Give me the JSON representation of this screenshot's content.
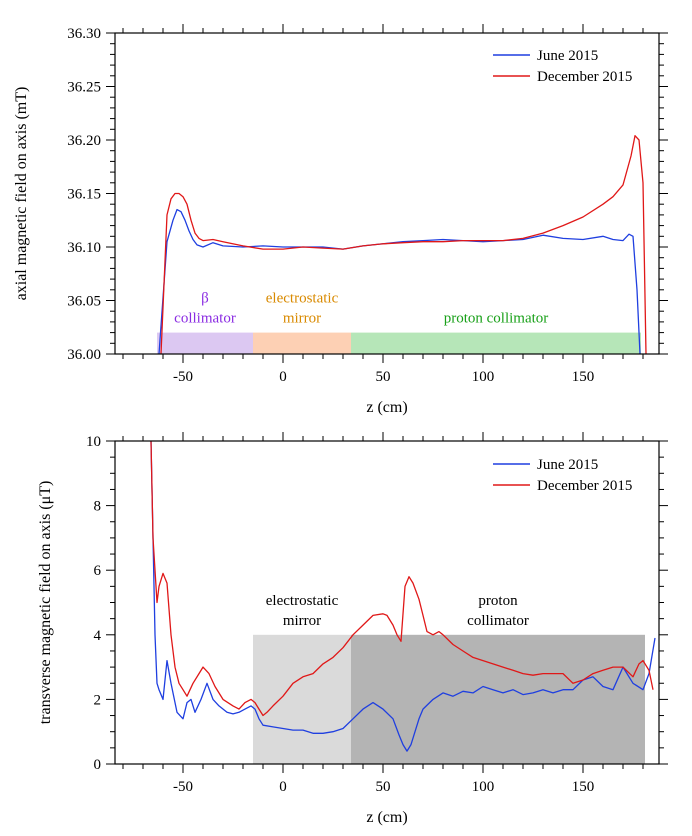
{
  "chart_data": [
    {
      "type": "line",
      "xlabel": "z (cm)",
      "ylabel": "axial magnetic field on axis (mT)",
      "xlim": [
        -84,
        188
      ],
      "ylim": [
        36.0,
        36.3
      ],
      "xticks": [
        -50,
        0,
        50,
        100,
        150
      ],
      "yticks": [
        "36.00",
        "36.05",
        "36.10",
        "36.15",
        "36.20",
        "36.25",
        "36.30"
      ],
      "grid": false,
      "legend_position": "top-right",
      "regions": [
        {
          "label_lines": [
            "β",
            "collimator"
          ],
          "x_start": -63,
          "x_end": -15,
          "y_top": 36.02,
          "fill": "#dcc8f2",
          "text_color": "#8a2be2"
        },
        {
          "label_lines": [
            "electrostatic",
            "mirror"
          ],
          "x_start": -15,
          "x_end": 34,
          "y_top": 36.02,
          "fill": "#fdd0b4",
          "text_color": "#d98a00"
        },
        {
          "label_lines": [
            "proton collimator"
          ],
          "x_start": 34,
          "x_end": 179,
          "y_top": 36.02,
          "fill": "#b6e6b8",
          "text_color": "#18a018"
        }
      ],
      "series": [
        {
          "name": "June 2015",
          "color": "#1f3fe0",
          "x": [
            -62,
            -58,
            -55,
            -53,
            -51,
            -49,
            -47,
            -45,
            -43,
            -40,
            -35,
            -30,
            -20,
            -10,
            0,
            10,
            20,
            30,
            40,
            50,
            60,
            70,
            80,
            90,
            100,
            110,
            120,
            130,
            140,
            150,
            160,
            165,
            170,
            173,
            175,
            177,
            178.5
          ],
          "y": [
            36.0,
            36.105,
            36.125,
            36.135,
            36.133,
            36.125,
            36.115,
            36.107,
            36.102,
            36.1,
            36.104,
            36.101,
            36.1,
            36.101,
            36.1,
            36.1,
            36.1,
            36.098,
            36.101,
            36.103,
            36.105,
            36.106,
            36.107,
            36.106,
            36.105,
            36.106,
            36.107,
            36.111,
            36.108,
            36.107,
            36.11,
            36.107,
            36.106,
            36.112,
            36.11,
            36.06,
            36.0
          ]
        },
        {
          "name": "December 2015",
          "color": "#e01818",
          "x": [
            -61,
            -58,
            -56,
            -54,
            -52,
            -50,
            -48,
            -46,
            -44,
            -42,
            -40,
            -35,
            -30,
            -20,
            -10,
            0,
            10,
            20,
            30,
            40,
            50,
            60,
            70,
            80,
            90,
            100,
            110,
            120,
            130,
            140,
            150,
            160,
            165,
            170,
            174,
            176,
            178,
            180,
            181.5
          ],
          "y": [
            36.0,
            36.13,
            36.145,
            36.15,
            36.15,
            36.147,
            36.14,
            36.125,
            36.113,
            36.108,
            36.106,
            36.107,
            36.105,
            36.101,
            36.098,
            36.098,
            36.1,
            36.099,
            36.098,
            36.101,
            36.103,
            36.104,
            36.105,
            36.105,
            36.106,
            36.106,
            36.106,
            36.108,
            36.113,
            36.12,
            36.128,
            36.14,
            36.147,
            36.158,
            36.185,
            36.204,
            36.2,
            36.16,
            36.0
          ]
        }
      ]
    },
    {
      "type": "line",
      "xlabel": "z (cm)",
      "ylabel": "transverse magnetic field on axis (μT)",
      "xlim": [
        -84,
        188
      ],
      "ylim": [
        0,
        10
      ],
      "xticks": [
        -50,
        0,
        50,
        100,
        150
      ],
      "yticks": [
        "0",
        "2",
        "4",
        "6",
        "8",
        "10"
      ],
      "grid": false,
      "legend_position": "top-right",
      "regions": [
        {
          "label_lines": [
            "electrostatic",
            "mirror"
          ],
          "x_start": -15,
          "x_end": 34,
          "y_top": 4,
          "fill": "#dadada",
          "text_color": "#000000"
        },
        {
          "label_lines": [
            "proton",
            "collimator"
          ],
          "x_start": 34,
          "x_end": 181,
          "y_top": 4,
          "fill": "#b4b4b4",
          "text_color": "#000000"
        }
      ],
      "series": [
        {
          "name": "June 2015",
          "color": "#1f3fe0",
          "x": [
            -66,
            -65,
            -64,
            -63,
            -62,
            -60,
            -58,
            -56,
            -53,
            -50,
            -48,
            -46,
            -44,
            -41,
            -38,
            -35,
            -32,
            -28,
            -25,
            -22,
            -19,
            -16,
            -14,
            -12,
            -10,
            -5,
            0,
            5,
            10,
            15,
            20,
            25,
            30,
            35,
            40,
            45,
            50,
            55,
            58,
            60,
            62,
            64,
            66,
            68,
            70,
            75,
            80,
            85,
            90,
            95,
            100,
            105,
            110,
            115,
            120,
            125,
            130,
            135,
            140,
            145,
            150,
            155,
            160,
            165,
            170,
            175,
            180,
            183,
            186
          ],
          "y": [
            10,
            7,
            4,
            2.5,
            2.3,
            2.0,
            3.2,
            2.5,
            1.6,
            1.4,
            1.9,
            2.0,
            1.6,
            2.0,
            2.5,
            2.0,
            1.8,
            1.6,
            1.55,
            1.6,
            1.7,
            1.8,
            1.7,
            1.4,
            1.2,
            1.15,
            1.1,
            1.05,
            1.05,
            0.95,
            0.95,
            1.0,
            1.1,
            1.4,
            1.7,
            1.9,
            1.7,
            1.4,
            0.9,
            0.6,
            0.4,
            0.6,
            1.0,
            1.4,
            1.7,
            2.0,
            2.2,
            2.1,
            2.25,
            2.2,
            2.4,
            2.3,
            2.2,
            2.3,
            2.15,
            2.2,
            2.3,
            2.2,
            2.3,
            2.3,
            2.6,
            2.7,
            2.4,
            2.3,
            3.0,
            2.5,
            2.3,
            2.8,
            3.9
          ]
        },
        {
          "name": "December 2015",
          "color": "#e01818",
          "x": [
            -66,
            -65,
            -64,
            -63,
            -62,
            -60,
            -58,
            -56,
            -54,
            -52,
            -50,
            -48,
            -45,
            -42,
            -40,
            -37,
            -34,
            -30,
            -25,
            -22,
            -19,
            -16,
            -14,
            -12,
            -10,
            -8,
            -5,
            0,
            5,
            10,
            15,
            20,
            25,
            30,
            35,
            40,
            45,
            50,
            52,
            55,
            57,
            59,
            61,
            63,
            65,
            68,
            70,
            72,
            75,
            78,
            80,
            85,
            90,
            95,
            100,
            105,
            110,
            115,
            120,
            125,
            130,
            135,
            140,
            145,
            150,
            155,
            160,
            165,
            170,
            175,
            178,
            180,
            183,
            185
          ],
          "y": [
            10,
            7,
            6.0,
            5.0,
            5.5,
            5.9,
            5.6,
            4.0,
            3.0,
            2.5,
            2.3,
            2.1,
            2.5,
            2.8,
            3.0,
            2.8,
            2.4,
            2.0,
            1.8,
            1.7,
            1.9,
            2.0,
            1.9,
            1.7,
            1.5,
            1.6,
            1.8,
            2.1,
            2.5,
            2.7,
            2.8,
            3.1,
            3.3,
            3.6,
            4.0,
            4.3,
            4.6,
            4.65,
            4.6,
            4.3,
            4.0,
            3.8,
            5.5,
            5.8,
            5.6,
            5.1,
            4.6,
            4.1,
            4.0,
            4.1,
            4.0,
            3.7,
            3.5,
            3.3,
            3.2,
            3.1,
            3.0,
            2.9,
            2.8,
            2.75,
            2.8,
            2.8,
            2.8,
            2.5,
            2.6,
            2.8,
            2.9,
            3.0,
            3.0,
            2.7,
            3.1,
            3.2,
            2.9,
            2.3
          ]
        }
      ]
    }
  ]
}
